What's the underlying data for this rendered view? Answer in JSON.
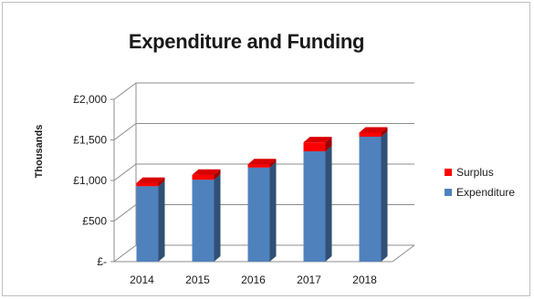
{
  "chart_data": {
    "type": "bar",
    "title": "Expenditure and Funding",
    "xlabel": "",
    "ylabel": "Thousands",
    "categories": [
      "2014",
      "2015",
      "2016",
      "2017",
      "2018"
    ],
    "series": [
      {
        "name": "Expenditure",
        "values": [
          930,
          1010,
          1160,
          1360,
          1540
        ],
        "color": "#4f81bd"
      },
      {
        "name": "Surplus",
        "values": [
          40,
          60,
          40,
          110,
          50
        ],
        "color": "#ff0000"
      }
    ],
    "stacked": true,
    "ylim": [
      0,
      2000
    ],
    "yticks": [
      0,
      500,
      1000,
      1500,
      2000
    ],
    "ytick_labels": [
      "£-",
      "£500",
      "£1,000",
      "£1,500",
      "£2,000"
    ],
    "grid": true,
    "legend_position": "right",
    "legend": [
      "Surplus",
      "Expenditure"
    ],
    "style": "3d-column"
  }
}
